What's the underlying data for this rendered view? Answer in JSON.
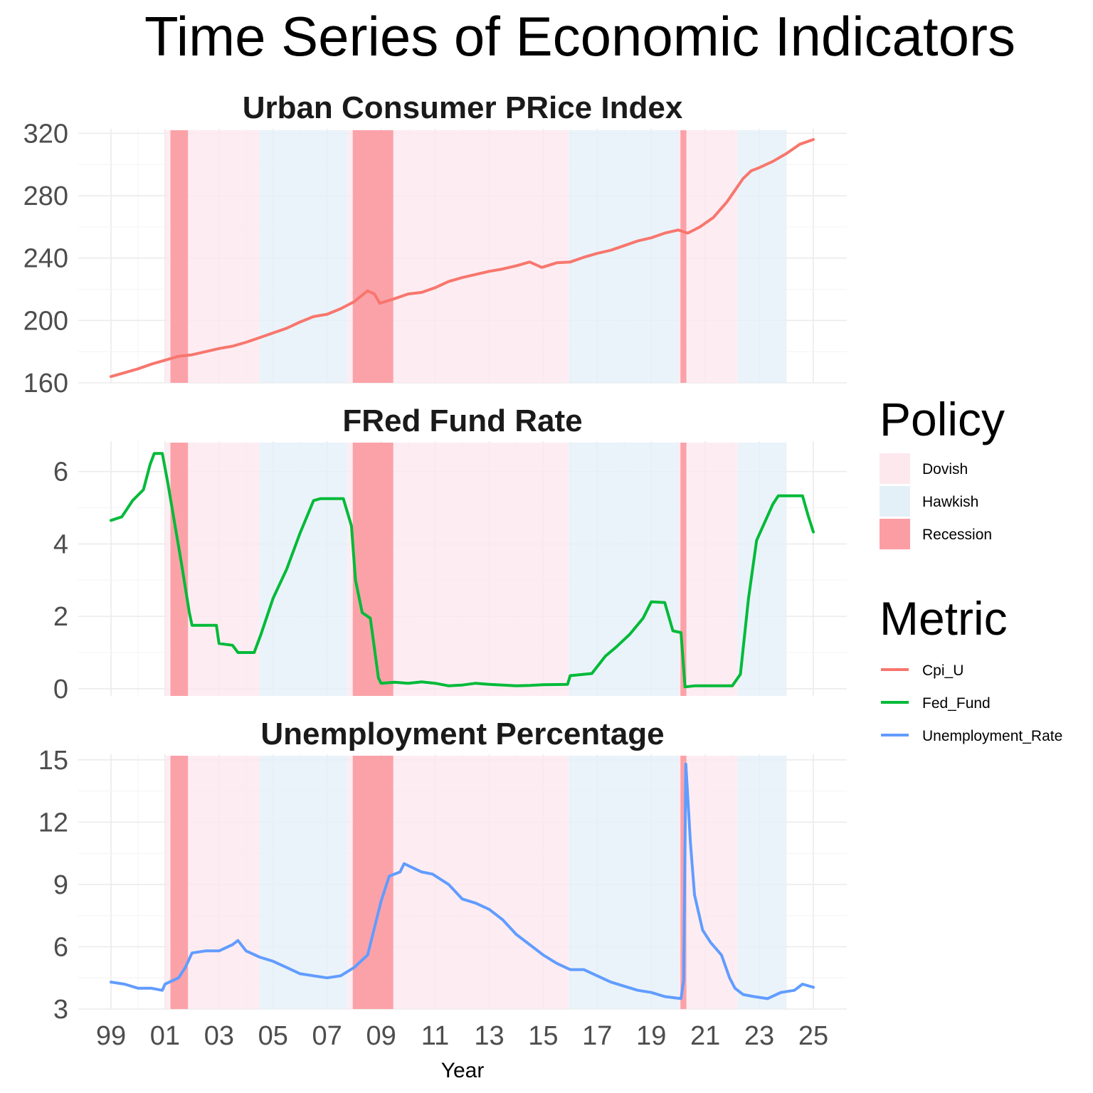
{
  "title": "Time Series of Economic Indicators",
  "xlabel": "Year",
  "x_tick_labels": [
    "99",
    "01",
    "03",
    "05",
    "07",
    "09",
    "11",
    "13",
    "15",
    "17",
    "19",
    "21",
    "23",
    "25"
  ],
  "legend": {
    "policy_title": "Policy",
    "policy_items": [
      {
        "label": "Dovish",
        "color": "#fde8ee"
      },
      {
        "label": "Hawkish",
        "color": "#e4f0f8"
      },
      {
        "label": "Recession",
        "color": "#fb9ea4"
      }
    ],
    "metric_title": "Metric",
    "metric_items": [
      {
        "label": "Cpi_U",
        "color": "#f8766d"
      },
      {
        "label": "Fed_Fund",
        "color": "#00ba38"
      },
      {
        "label": "Unemployment_Rate",
        "color": "#619cff"
      }
    ]
  },
  "chart_data": {
    "type": "line",
    "x_range": [
      1999.0,
      2025.0
    ],
    "grid": true,
    "legend_position": "right",
    "policy_regions": [
      {
        "type": "Dovish",
        "start": 2001.0,
        "end": 2004.5
      },
      {
        "type": "Hawkish",
        "start": 2004.5,
        "end": 2007.75
      },
      {
        "type": "Dovish",
        "start": 2007.75,
        "end": 2015.95
      },
      {
        "type": "Hawkish",
        "start": 2015.95,
        "end": 2020.0
      },
      {
        "type": "Dovish",
        "start": 2020.0,
        "end": 2022.2
      },
      {
        "type": "Hawkish",
        "start": 2022.2,
        "end": 2024.0
      }
    ],
    "recessions": [
      {
        "start": 2001.2,
        "end": 2001.85
      },
      {
        "start": 2007.95,
        "end": 2009.45
      },
      {
        "start": 2020.08,
        "end": 2020.3
      }
    ],
    "panels": [
      {
        "title": "Urban Consumer PRice Index",
        "series_name": "Cpi_U",
        "color": "#f8766d",
        "ylim": [
          160,
          322
        ],
        "y_ticks": [
          "160",
          "200",
          "240",
          "280",
          "320"
        ],
        "points": [
          [
            1999.0,
            164
          ],
          [
            1999.5,
            166.5
          ],
          [
            2000.0,
            169
          ],
          [
            2000.5,
            172
          ],
          [
            2001.0,
            174.5
          ],
          [
            2001.5,
            177
          ],
          [
            2002.0,
            178
          ],
          [
            2002.5,
            180
          ],
          [
            2003.0,
            182
          ],
          [
            2003.5,
            183.5
          ],
          [
            2004.0,
            186
          ],
          [
            2004.5,
            189
          ],
          [
            2005.0,
            192
          ],
          [
            2005.5,
            195
          ],
          [
            2006.0,
            199
          ],
          [
            2006.5,
            202.5
          ],
          [
            2007.0,
            204
          ],
          [
            2007.5,
            207.5
          ],
          [
            2008.0,
            212
          ],
          [
            2008.5,
            219
          ],
          [
            2008.75,
            217
          ],
          [
            2008.95,
            211
          ],
          [
            2009.5,
            214
          ],
          [
            2010.0,
            217
          ],
          [
            2010.5,
            218
          ],
          [
            2011.0,
            221
          ],
          [
            2011.5,
            225
          ],
          [
            2012.0,
            227.5
          ],
          [
            2012.5,
            229.5
          ],
          [
            2013.0,
            231.5
          ],
          [
            2013.5,
            233
          ],
          [
            2014.0,
            235
          ],
          [
            2014.5,
            237.5
          ],
          [
            2014.95,
            234
          ],
          [
            2015.5,
            237
          ],
          [
            2016.0,
            237.5
          ],
          [
            2016.5,
            240.5
          ],
          [
            2017.0,
            243
          ],
          [
            2017.5,
            245
          ],
          [
            2018.0,
            248
          ],
          [
            2018.5,
            251
          ],
          [
            2019.0,
            253
          ],
          [
            2019.5,
            256
          ],
          [
            2020.0,
            258
          ],
          [
            2020.35,
            256
          ],
          [
            2020.8,
            260
          ],
          [
            2021.3,
            266
          ],
          [
            2021.8,
            276
          ],
          [
            2022.4,
            291
          ],
          [
            2022.7,
            296
          ],
          [
            2023.0,
            298
          ],
          [
            2023.5,
            302
          ],
          [
            2024.0,
            307
          ],
          [
            2024.5,
            313
          ],
          [
            2025.0,
            316
          ]
        ]
      },
      {
        "title": "FRed  Fund Rate",
        "series_name": "Fed_Fund",
        "color": "#00ba38",
        "ylim": [
          -0.2,
          6.8
        ],
        "y_ticks": [
          "0",
          "2",
          "4",
          "6"
        ],
        "points": [
          [
            1999.0,
            4.65
          ],
          [
            1999.4,
            4.75
          ],
          [
            1999.8,
            5.2
          ],
          [
            2000.2,
            5.5
          ],
          [
            2000.45,
            6.2
          ],
          [
            2000.6,
            6.5
          ],
          [
            2000.9,
            6.5
          ],
          [
            2001.1,
            5.7
          ],
          [
            2001.35,
            4.6
          ],
          [
            2001.6,
            3.5
          ],
          [
            2001.9,
            2.1
          ],
          [
            2002.0,
            1.75
          ],
          [
            2002.9,
            1.75
          ],
          [
            2003.0,
            1.25
          ],
          [
            2003.5,
            1.2
          ],
          [
            2003.7,
            1.0
          ],
          [
            2004.3,
            1.0
          ],
          [
            2004.55,
            1.5
          ],
          [
            2005.0,
            2.5
          ],
          [
            2005.5,
            3.3
          ],
          [
            2006.0,
            4.3
          ],
          [
            2006.5,
            5.2
          ],
          [
            2006.75,
            5.25
          ],
          [
            2007.6,
            5.25
          ],
          [
            2007.9,
            4.5
          ],
          [
            2008.05,
            3.0
          ],
          [
            2008.3,
            2.1
          ],
          [
            2008.6,
            1.95
          ],
          [
            2008.9,
            0.3
          ],
          [
            2009.0,
            0.15
          ],
          [
            2009.5,
            0.18
          ],
          [
            2010.0,
            0.15
          ],
          [
            2010.5,
            0.19
          ],
          [
            2011.0,
            0.15
          ],
          [
            2011.5,
            0.08
          ],
          [
            2012.0,
            0.1
          ],
          [
            2012.5,
            0.15
          ],
          [
            2013.0,
            0.12
          ],
          [
            2013.5,
            0.1
          ],
          [
            2014.0,
            0.08
          ],
          [
            2014.5,
            0.09
          ],
          [
            2015.0,
            0.11
          ],
          [
            2015.9,
            0.12
          ],
          [
            2016.0,
            0.36
          ],
          [
            2016.8,
            0.42
          ],
          [
            2017.3,
            0.9
          ],
          [
            2017.7,
            1.15
          ],
          [
            2018.2,
            1.5
          ],
          [
            2018.7,
            1.95
          ],
          [
            2019.0,
            2.4
          ],
          [
            2019.5,
            2.38
          ],
          [
            2019.8,
            1.6
          ],
          [
            2020.1,
            1.55
          ],
          [
            2020.25,
            0.05
          ],
          [
            2020.6,
            0.08
          ],
          [
            2021.5,
            0.08
          ],
          [
            2022.0,
            0.08
          ],
          [
            2022.3,
            0.4
          ],
          [
            2022.6,
            2.5
          ],
          [
            2022.9,
            4.1
          ],
          [
            2023.2,
            4.6
          ],
          [
            2023.5,
            5.1
          ],
          [
            2023.7,
            5.33
          ],
          [
            2024.6,
            5.33
          ],
          [
            2024.8,
            4.8
          ],
          [
            2025.0,
            4.33
          ]
        ]
      },
      {
        "title": "Unemployment Percentage",
        "series_name": "Unemployment_Rate",
        "color": "#619cff",
        "ylim": [
          3.0,
          15.2
        ],
        "y_ticks": [
          "3",
          "6",
          "9",
          "12",
          "15"
        ],
        "points": [
          [
            1999.0,
            4.3
          ],
          [
            1999.5,
            4.2
          ],
          [
            2000.0,
            4.0
          ],
          [
            2000.5,
            4.0
          ],
          [
            2000.9,
            3.9
          ],
          [
            2001.0,
            4.2
          ],
          [
            2001.5,
            4.5
          ],
          [
            2001.75,
            5.0
          ],
          [
            2002.0,
            5.7
          ],
          [
            2002.5,
            5.8
          ],
          [
            2003.0,
            5.8
          ],
          [
            2003.5,
            6.1
          ],
          [
            2003.7,
            6.3
          ],
          [
            2004.0,
            5.8
          ],
          [
            2004.5,
            5.5
          ],
          [
            2005.0,
            5.3
          ],
          [
            2005.5,
            5.0
          ],
          [
            2006.0,
            4.7
          ],
          [
            2006.5,
            4.6
          ],
          [
            2007.0,
            4.5
          ],
          [
            2007.5,
            4.6
          ],
          [
            2008.0,
            5.0
          ],
          [
            2008.5,
            5.6
          ],
          [
            2008.75,
            6.9
          ],
          [
            2009.0,
            8.2
          ],
          [
            2009.3,
            9.4
          ],
          [
            2009.7,
            9.6
          ],
          [
            2009.85,
            10.0
          ],
          [
            2010.5,
            9.6
          ],
          [
            2010.9,
            9.5
          ],
          [
            2011.5,
            9.0
          ],
          [
            2012.0,
            8.3
          ],
          [
            2012.5,
            8.1
          ],
          [
            2013.0,
            7.8
          ],
          [
            2013.5,
            7.3
          ],
          [
            2014.0,
            6.6
          ],
          [
            2014.5,
            6.1
          ],
          [
            2015.0,
            5.6
          ],
          [
            2015.5,
            5.2
          ],
          [
            2016.0,
            4.9
          ],
          [
            2016.5,
            4.9
          ],
          [
            2017.0,
            4.6
          ],
          [
            2017.5,
            4.3
          ],
          [
            2018.0,
            4.1
          ],
          [
            2018.5,
            3.9
          ],
          [
            2019.0,
            3.8
          ],
          [
            2019.5,
            3.6
          ],
          [
            2020.1,
            3.5
          ],
          [
            2020.2,
            4.4
          ],
          [
            2020.28,
            14.8
          ],
          [
            2020.45,
            11.0
          ],
          [
            2020.6,
            8.5
          ],
          [
            2020.9,
            6.8
          ],
          [
            2021.2,
            6.2
          ],
          [
            2021.6,
            5.6
          ],
          [
            2021.9,
            4.5
          ],
          [
            2022.1,
            4.0
          ],
          [
            2022.4,
            3.7
          ],
          [
            2022.8,
            3.6
          ],
          [
            2023.3,
            3.5
          ],
          [
            2023.8,
            3.8
          ],
          [
            2024.3,
            3.9
          ],
          [
            2024.6,
            4.2
          ],
          [
            2025.0,
            4.05
          ]
        ]
      }
    ]
  }
}
